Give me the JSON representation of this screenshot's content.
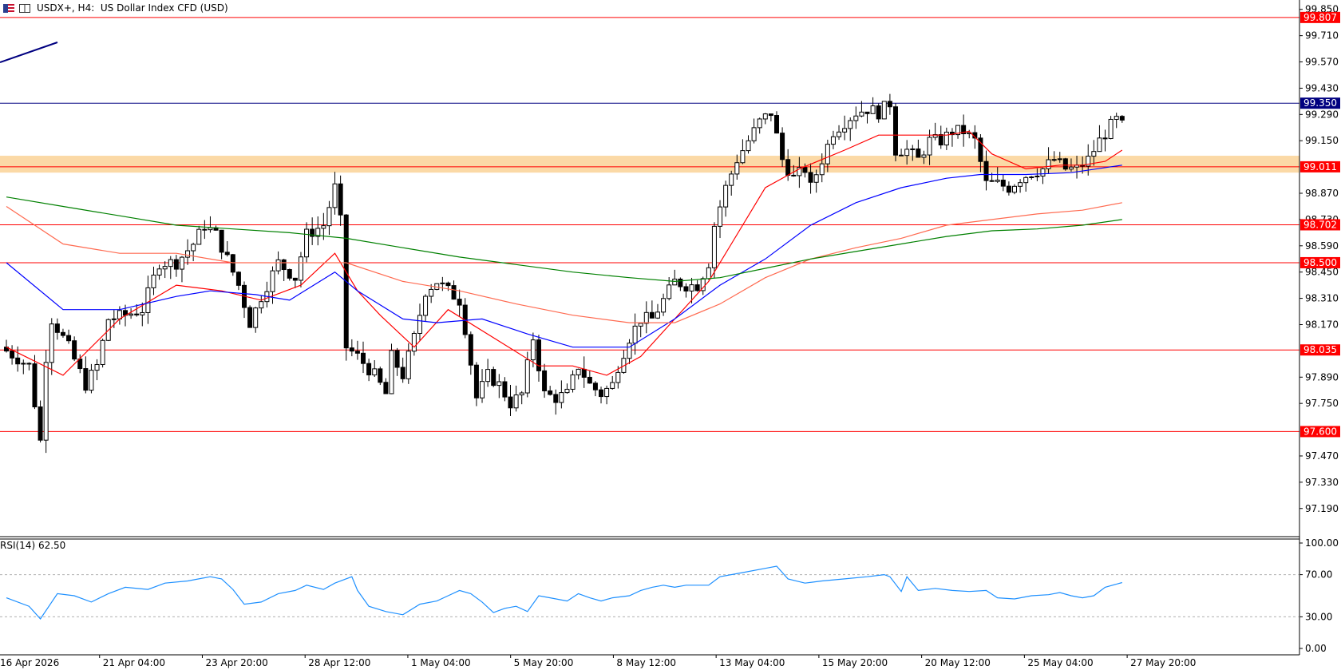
{
  "header": {
    "symbol": "USDX+, H4:",
    "description": "US Dollar Index CFD (USD)"
  },
  "rsi_label": "RSI(14) 62.50",
  "colors": {
    "candle_up": "#000000",
    "candle_down": "#000000",
    "ma_fast": "#ff0000",
    "ma_mid": "#0000ff",
    "ma_slow": "#ff6a50",
    "ma_long": "#008000",
    "level_line": "#ff0000",
    "current_price_line": "#000080",
    "zone": "#fbd9a6",
    "rsi": "#1e90ff"
  },
  "chart_data": [
    {
      "type": "candlestick",
      "symbol": "USDX+",
      "timeframe": "H4",
      "price_axis": {
        "ticks": [
          "99.850",
          "99.710",
          "99.570",
          "99.430",
          "99.290",
          "99.150",
          "98.870",
          "98.730",
          "98.590",
          "98.450",
          "98.310",
          "98.170",
          "97.890",
          "97.750",
          "97.470",
          "97.330",
          "97.190"
        ],
        "range": [
          97.04,
          99.9
        ]
      },
      "time_axis": {
        "labels": [
          "16 Apr 2026",
          "21 Apr 04:00",
          "23 Apr 20:00",
          "28 Apr 12:00",
          "1 May 04:00",
          "5 May 20:00",
          "8 May 12:00",
          "13 May 04:00",
          "15 May 20:00",
          "20 May 12:00",
          "25 May 04:00",
          "27 May 20:00"
        ]
      },
      "levels": [
        {
          "price": 99.807,
          "label": "99.807"
        },
        {
          "price": 99.011,
          "label": "99.011"
        },
        {
          "price": 98.702,
          "label": "98.702"
        },
        {
          "price": 98.5,
          "label": "98.500"
        },
        {
          "price": 98.035,
          "label": "98.035"
        },
        {
          "price": 97.6,
          "label": "97.600"
        }
      ],
      "current_price": {
        "price": 99.35,
        "label": "99.350"
      },
      "zone": {
        "from": 98.98,
        "to": 99.07
      },
      "anchors": [
        [
          0,
          98.05
        ],
        [
          5,
          97.95
        ],
        [
          7,
          97.55
        ],
        [
          8,
          98.0
        ],
        [
          9,
          98.2
        ],
        [
          12,
          98.05
        ],
        [
          15,
          97.85
        ],
        [
          17,
          97.95
        ],
        [
          19,
          98.2
        ],
        [
          22,
          98.22
        ],
        [
          25,
          98.25
        ],
        [
          28,
          98.5
        ],
        [
          31,
          98.5
        ],
        [
          34,
          98.6
        ],
        [
          36,
          98.7
        ],
        [
          38,
          98.65
        ],
        [
          40,
          98.52
        ],
        [
          42,
          98.38
        ],
        [
          44,
          98.18
        ],
        [
          46,
          98.32
        ],
        [
          49,
          98.5
        ],
        [
          52,
          98.42
        ],
        [
          54,
          98.65
        ],
        [
          57,
          98.7
        ],
        [
          59,
          98.9
        ],
        [
          60,
          98.72
        ],
        [
          61,
          98.05
        ],
        [
          63,
          98.0
        ],
        [
          66,
          97.9
        ],
        [
          68,
          97.8
        ],
        [
          69,
          98.0
        ],
        [
          71,
          97.9
        ],
        [
          73,
          98.1
        ],
        [
          75,
          98.35
        ],
        [
          77,
          98.4
        ],
        [
          79,
          98.35
        ],
        [
          81,
          98.3
        ],
        [
          82,
          98.15
        ],
        [
          84,
          97.78
        ],
        [
          86,
          97.9
        ],
        [
          88,
          97.85
        ],
        [
          90,
          97.75
        ],
        [
          92,
          97.8
        ],
        [
          94,
          98.1
        ],
        [
          96,
          97.8
        ],
        [
          98,
          97.78
        ],
        [
          100,
          97.8
        ],
        [
          102,
          97.95
        ],
        [
          104,
          97.85
        ],
        [
          106,
          97.8
        ],
        [
          108,
          97.85
        ],
        [
          109,
          97.95
        ],
        [
          111,
          98.1
        ],
        [
          113,
          98.2
        ],
        [
          115,
          98.2
        ],
        [
          117,
          98.3
        ],
        [
          119,
          98.4
        ],
        [
          121,
          98.38
        ],
        [
          123,
          98.38
        ],
        [
          125,
          98.5
        ],
        [
          126,
          98.7
        ],
        [
          128,
          98.9
        ],
        [
          130,
          99.05
        ],
        [
          132,
          99.15
        ],
        [
          134,
          99.25
        ],
        [
          136,
          99.3
        ],
        [
          138,
          99.05
        ],
        [
          140,
          98.95
        ],
        [
          142,
          99.0
        ],
        [
          143,
          98.9
        ],
        [
          145,
          99.05
        ],
        [
          147,
          99.2
        ],
        [
          149,
          99.25
        ],
        [
          151,
          99.3
        ],
        [
          153,
          99.32
        ],
        [
          155,
          99.3
        ],
        [
          157,
          99.35
        ],
        [
          158,
          99.1
        ],
        [
          160,
          99.1
        ],
        [
          162,
          99.05
        ],
        [
          164,
          99.15
        ],
        [
          166,
          99.15
        ],
        [
          168,
          99.2
        ],
        [
          170,
          99.2
        ],
        [
          172,
          99.15
        ],
        [
          174,
          98.92
        ],
        [
          176,
          98.92
        ],
        [
          178,
          98.9
        ],
        [
          180,
          98.95
        ],
        [
          182,
          98.98
        ],
        [
          184,
          99.0
        ],
        [
          186,
          99.05
        ],
        [
          188,
          99.0
        ],
        [
          190,
          99.0
        ],
        [
          192,
          99.05
        ],
        [
          194,
          99.15
        ],
        [
          196,
          99.23
        ],
        [
          197,
          99.26
        ]
      ],
      "moving_averages": [
        {
          "color": "#ff0000",
          "points": [
            [
              0,
              98.05
            ],
            [
              10,
              97.9
            ],
            [
              20,
              98.2
            ],
            [
              30,
              98.38
            ],
            [
              38,
              98.35
            ],
            [
              45,
              98.3
            ],
            [
              52,
              98.38
            ],
            [
              58,
              98.55
            ],
            [
              62,
              98.35
            ],
            [
              66,
              98.22
            ],
            [
              72,
              98.05
            ],
            [
              78,
              98.25
            ],
            [
              86,
              98.1
            ],
            [
              94,
              97.95
            ],
            [
              100,
              97.95
            ],
            [
              106,
              97.9
            ],
            [
              112,
              98.0
            ],
            [
              118,
              98.2
            ],
            [
              124,
              98.4
            ],
            [
              128,
              98.6
            ],
            [
              134,
              98.9
            ],
            [
              140,
              99.0
            ],
            [
              148,
              99.1
            ],
            [
              154,
              99.18
            ],
            [
              160,
              99.18
            ],
            [
              166,
              99.18
            ],
            [
              170,
              99.2
            ],
            [
              174,
              99.08
            ],
            [
              180,
              99.0
            ],
            [
              186,
              99.02
            ],
            [
              190,
              99.02
            ],
            [
              194,
              99.04
            ],
            [
              197,
              99.1
            ]
          ]
        },
        {
          "color": "#0000ff",
          "points": [
            [
              0,
              98.5
            ],
            [
              10,
              98.25
            ],
            [
              20,
              98.25
            ],
            [
              30,
              98.32
            ],
            [
              36,
              98.35
            ],
            [
              44,
              98.33
            ],
            [
              50,
              98.3
            ],
            [
              58,
              98.45
            ],
            [
              62,
              98.35
            ],
            [
              70,
              98.2
            ],
            [
              76,
              98.18
            ],
            [
              84,
              98.2
            ],
            [
              92,
              98.12
            ],
            [
              100,
              98.05
            ],
            [
              110,
              98.05
            ],
            [
              118,
              98.2
            ],
            [
              126,
              98.38
            ],
            [
              134,
              98.52
            ],
            [
              142,
              98.7
            ],
            [
              150,
              98.82
            ],
            [
              158,
              98.9
            ],
            [
              166,
              98.95
            ],
            [
              172,
              98.97
            ],
            [
              180,
              98.97
            ],
            [
              188,
              98.98
            ],
            [
              197,
              99.02
            ]
          ]
        },
        {
          "color": "#ff6a50",
          "points": [
            [
              0,
              98.8
            ],
            [
              10,
              98.6
            ],
            [
              20,
              98.55
            ],
            [
              30,
              98.55
            ],
            [
              40,
              98.5
            ],
            [
              50,
              98.5
            ],
            [
              60,
              98.5
            ],
            [
              70,
              98.4
            ],
            [
              80,
              98.35
            ],
            [
              90,
              98.28
            ],
            [
              100,
              98.22
            ],
            [
              110,
              98.18
            ],
            [
              118,
              98.18
            ],
            [
              126,
              98.28
            ],
            [
              134,
              98.42
            ],
            [
              142,
              98.52
            ],
            [
              150,
              98.58
            ],
            [
              158,
              98.63
            ],
            [
              166,
              98.7
            ],
            [
              174,
              98.73
            ],
            [
              182,
              98.76
            ],
            [
              190,
              98.78
            ],
            [
              197,
              98.82
            ]
          ]
        },
        {
          "color": "#008000",
          "points": [
            [
              0,
              98.85
            ],
            [
              10,
              98.8
            ],
            [
              20,
              98.75
            ],
            [
              30,
              98.7
            ],
            [
              40,
              98.68
            ],
            [
              50,
              98.66
            ],
            [
              60,
              98.63
            ],
            [
              70,
              98.58
            ],
            [
              80,
              98.53
            ],
            [
              90,
              98.49
            ],
            [
              100,
              98.45
            ],
            [
              110,
              98.42
            ],
            [
              118,
              98.4
            ],
            [
              126,
              98.42
            ],
            [
              134,
              98.47
            ],
            [
              142,
              98.52
            ],
            [
              150,
              98.56
            ],
            [
              158,
              98.6
            ],
            [
              166,
              98.64
            ],
            [
              174,
              98.67
            ],
            [
              182,
              98.68
            ],
            [
              190,
              98.7
            ],
            [
              197,
              98.73
            ]
          ]
        }
      ]
    },
    {
      "type": "line",
      "indicator": "RSI(14)",
      "value": 62.5,
      "y_ticks": [
        "100.00",
        "70.00",
        "30.00",
        "0.00"
      ],
      "ylim": [
        0,
        100
      ],
      "reference_lines": [
        70,
        30
      ],
      "series": {
        "color": "#1e90ff",
        "points": [
          [
            0,
            48
          ],
          [
            4,
            40
          ],
          [
            6,
            28
          ],
          [
            9,
            52
          ],
          [
            12,
            50
          ],
          [
            15,
            44
          ],
          [
            18,
            52
          ],
          [
            21,
            58
          ],
          [
            25,
            56
          ],
          [
            28,
            62
          ],
          [
            32,
            64
          ],
          [
            36,
            68
          ],
          [
            38,
            66
          ],
          [
            40,
            56
          ],
          [
            42,
            42
          ],
          [
            45,
            44
          ],
          [
            48,
            52
          ],
          [
            51,
            55
          ],
          [
            53,
            60
          ],
          [
            56,
            56
          ],
          [
            58,
            62
          ],
          [
            61,
            68
          ],
          [
            62,
            55
          ],
          [
            64,
            40
          ],
          [
            67,
            35
          ],
          [
            70,
            32
          ],
          [
            73,
            42
          ],
          [
            76,
            45
          ],
          [
            78,
            50
          ],
          [
            80,
            55
          ],
          [
            82,
            52
          ],
          [
            84,
            44
          ],
          [
            86,
            34
          ],
          [
            88,
            38
          ],
          [
            90,
            40
          ],
          [
            92,
            35
          ],
          [
            94,
            50
          ],
          [
            96,
            48
          ],
          [
            99,
            45
          ],
          [
            101,
            52
          ],
          [
            103,
            48
          ],
          [
            105,
            45
          ],
          [
            107,
            48
          ],
          [
            110,
            50
          ],
          [
            112,
            55
          ],
          [
            114,
            58
          ],
          [
            116,
            60
          ],
          [
            118,
            58
          ],
          [
            120,
            60
          ],
          [
            124,
            60
          ],
          [
            126,
            68
          ],
          [
            130,
            72
          ],
          [
            134,
            76
          ],
          [
            136,
            78
          ],
          [
            138,
            66
          ],
          [
            141,
            62
          ],
          [
            144,
            64
          ],
          [
            148,
            66
          ],
          [
            152,
            68
          ],
          [
            155,
            70
          ],
          [
            156,
            68
          ],
          [
            158,
            54
          ],
          [
            159,
            68
          ],
          [
            161,
            55
          ],
          [
            164,
            57
          ],
          [
            167,
            55
          ],
          [
            170,
            54
          ],
          [
            173,
            55
          ],
          [
            175,
            48
          ],
          [
            178,
            47
          ],
          [
            181,
            50
          ],
          [
            184,
            51
          ],
          [
            186,
            53
          ],
          [
            188,
            50
          ],
          [
            190,
            48
          ],
          [
            192,
            50
          ],
          [
            194,
            58
          ],
          [
            197,
            62.5
          ]
        ]
      }
    }
  ]
}
